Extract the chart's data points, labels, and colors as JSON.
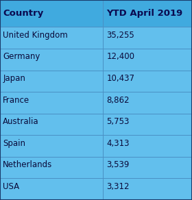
{
  "header": [
    "Country",
    "YTD April 2019"
  ],
  "rows": [
    [
      "United Kingdom",
      "35,255"
    ],
    [
      "Germany",
      "12,400"
    ],
    [
      "Japan",
      "10,437"
    ],
    [
      "France",
      "8,862"
    ],
    [
      "Australia",
      "5,753"
    ],
    [
      "Spain",
      "4,313"
    ],
    [
      "Netherlands",
      "3,539"
    ],
    [
      "USA",
      "3,312"
    ]
  ],
  "bg_color": "#62BFED",
  "header_bg_color": "#40AADF",
  "border_color": "#4A90C4",
  "header_text_color": "#0a0a50",
  "row_text_color": "#0a0a3a",
  "header_fontsize": 9.5,
  "row_fontsize": 8.5,
  "col_split": 0.535,
  "fig_width": 2.8,
  "fig_height": 2.92,
  "dpi": 100
}
